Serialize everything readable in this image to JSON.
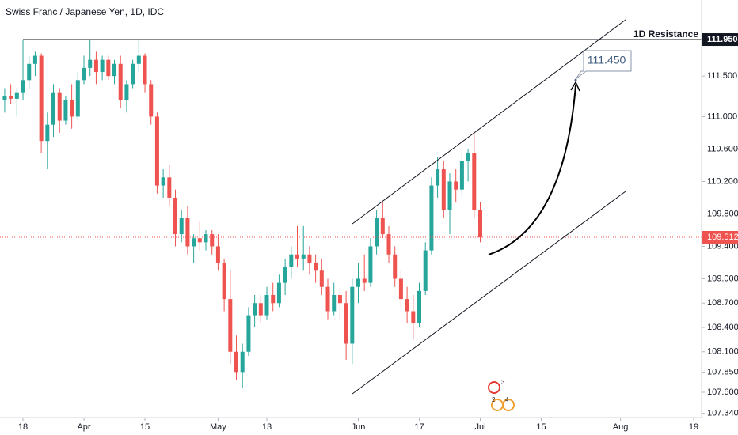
{
  "chart_data": {
    "type": "candlestick",
    "title": "Swiss Franc / Japanese Yen, 1D, IDC",
    "x": [
      -3,
      -2,
      -1,
      0,
      1,
      2,
      3,
      4,
      5,
      6,
      7,
      8,
      9,
      10,
      11,
      12,
      13,
      14,
      15,
      16,
      17,
      18,
      19,
      20,
      21,
      22,
      23,
      24,
      25,
      26,
      27,
      28,
      29,
      30,
      31,
      32,
      33,
      34,
      35,
      36,
      37,
      38,
      39,
      40,
      41,
      42,
      43,
      44,
      45,
      46,
      47,
      48,
      49,
      50,
      51,
      52,
      53,
      54,
      55,
      56,
      57,
      58,
      59,
      60,
      61,
      62,
      63,
      64,
      65,
      66,
      67,
      68,
      69,
      70,
      71,
      72,
      73,
      74,
      75
    ],
    "open": [
      111.2,
      111.25,
      111.22,
      111.3,
      111.45,
      111.65,
      111.75,
      110.7,
      110.9,
      111.3,
      110.95,
      111.2,
      111.0,
      111.45,
      111.6,
      111.7,
      111.55,
      111.7,
      111.5,
      111.65,
      111.2,
      111.4,
      111.65,
      111.75,
      111.4,
      111.0,
      110.15,
      110.25,
      110.0,
      109.55,
      109.75,
      109.4,
      109.5,
      109.45,
      109.55,
      109.4,
      109.2,
      108.75,
      108.1,
      107.85,
      108.1,
      108.55,
      108.7,
      108.55,
      108.8,
      108.7,
      108.95,
      109.15,
      109.3,
      109.25,
      109.3,
      109.2,
      109.1,
      108.9,
      108.6,
      108.8,
      108.7,
      108.2,
      108.9,
      109.0,
      108.95,
      109.4,
      109.75,
      109.55,
      109.3,
      109.0,
      108.75,
      108.6,
      108.45,
      108.85,
      109.35,
      110.15,
      110.35,
      109.85,
      110.2,
      110.1,
      110.45,
      110.55,
      109.85
    ],
    "high": [
      111.35,
      111.4,
      111.35,
      111.95,
      111.75,
      111.8,
      111.78,
      111.05,
      111.4,
      111.35,
      111.25,
      111.4,
      111.55,
      111.75,
      111.95,
      111.8,
      111.75,
      111.75,
      111.7,
      111.75,
      111.45,
      111.7,
      111.95,
      111.78,
      111.45,
      111.05,
      110.35,
      110.4,
      110.1,
      109.85,
      109.9,
      109.55,
      109.7,
      109.6,
      109.6,
      109.55,
      109.25,
      109.1,
      108.3,
      108.2,
      108.65,
      108.8,
      108.8,
      108.9,
      108.95,
      109.05,
      109.25,
      109.4,
      109.65,
      109.65,
      109.4,
      109.3,
      109.25,
      109.0,
      108.95,
      108.9,
      108.85,
      109.0,
      109.2,
      109.3,
      109.5,
      109.85,
      109.95,
      109.65,
      109.4,
      109.1,
      108.9,
      108.8,
      108.95,
      109.45,
      110.25,
      110.5,
      110.45,
      110.3,
      110.35,
      110.55,
      110.6,
      110.8,
      109.95
    ],
    "low": [
      111.05,
      111.15,
      111.0,
      111.2,
      111.35,
      111.5,
      110.55,
      110.35,
      110.75,
      110.8,
      110.9,
      110.85,
      110.95,
      111.4,
      111.5,
      111.4,
      111.45,
      111.45,
      111.4,
      111.1,
      111.05,
      111.35,
      111.55,
      111.3,
      110.9,
      110.05,
      110.0,
      109.9,
      109.4,
      109.45,
      109.3,
      109.2,
      109.35,
      109.35,
      109.3,
      109.1,
      108.6,
      107.95,
      107.75,
      107.65,
      108.05,
      108.4,
      108.45,
      108.5,
      108.6,
      108.65,
      108.8,
      109.0,
      109.15,
      109.1,
      109.05,
      108.95,
      108.8,
      108.5,
      108.55,
      108.5,
      108.0,
      107.95,
      108.7,
      108.85,
      108.9,
      109.3,
      109.5,
      109.2,
      108.9,
      108.65,
      108.45,
      108.25,
      108.4,
      108.8,
      109.3,
      110.0,
      109.75,
      109.55,
      109.95,
      110.0,
      110.2,
      109.75,
      109.45
    ],
    "close": [
      111.25,
      111.22,
      111.3,
      111.45,
      111.65,
      111.75,
      110.7,
      110.9,
      111.3,
      110.95,
      111.2,
      111.0,
      111.45,
      111.6,
      111.7,
      111.55,
      111.7,
      111.5,
      111.65,
      111.2,
      111.4,
      111.65,
      111.75,
      111.4,
      111.0,
      110.15,
      110.25,
      110.0,
      109.55,
      109.75,
      109.4,
      109.5,
      109.45,
      109.55,
      109.4,
      109.2,
      108.75,
      108.1,
      107.85,
      108.1,
      108.55,
      108.7,
      108.55,
      108.8,
      108.7,
      108.95,
      109.15,
      109.3,
      109.25,
      109.3,
      109.2,
      109.1,
      108.9,
      108.6,
      108.8,
      108.7,
      108.2,
      108.9,
      109.0,
      108.95,
      109.4,
      109.75,
      109.55,
      109.3,
      109.0,
      108.75,
      108.6,
      108.45,
      108.85,
      109.35,
      110.15,
      110.35,
      109.85,
      110.2,
      110.1,
      110.45,
      110.55,
      109.85,
      109.51
    ],
    "up_color": "#26a69a",
    "down_color": "#ef5350",
    "xlim": [
      -3.77,
      111.3
    ],
    "ylim": [
      107.288,
      112.438
    ],
    "yticks": [
      {
        "value": 111.5,
        "label": "111.500"
      },
      {
        "value": 111.0,
        "label": "111.000"
      },
      {
        "value": 110.6,
        "label": "110.600"
      },
      {
        "value": 110.2,
        "label": "110.200"
      },
      {
        "value": 109.8,
        "label": "109.800"
      },
      {
        "value": 109.4,
        "label": "109.400"
      },
      {
        "value": 109.0,
        "label": "109.000"
      },
      {
        "value": 108.7,
        "label": "108.700"
      },
      {
        "value": 108.4,
        "label": "108.400"
      },
      {
        "value": 108.1,
        "label": "108.100"
      },
      {
        "value": 107.85,
        "label": "107.850"
      },
      {
        "value": 107.6,
        "label": "107.600"
      },
      {
        "value": 107.34,
        "label": "107.340"
      }
    ],
    "xticks": [
      {
        "value": 0,
        "label": "18"
      },
      {
        "value": 10,
        "label": "Apr"
      },
      {
        "value": 20,
        "label": "15"
      },
      {
        "value": 32,
        "label": "May"
      },
      {
        "value": 40,
        "label": "13"
      },
      {
        "value": 55,
        "label": "Jun"
      },
      {
        "value": 65,
        "label": "17"
      },
      {
        "value": 75,
        "label": "Jul"
      },
      {
        "value": 85,
        "label": "15"
      },
      {
        "value": 98,
        "label": "Aug"
      },
      {
        "value": 110,
        "label": "19"
      }
    ],
    "resistance": {
      "label": "1D Resistance",
      "value": 111.95,
      "value_label": "111.950"
    },
    "last_price": 109.512,
    "last_price_color": "#ef5350",
    "target": {
      "value": 111.45,
      "label": "111.450"
    },
    "events": [
      "3",
      "2",
      "4"
    ]
  }
}
